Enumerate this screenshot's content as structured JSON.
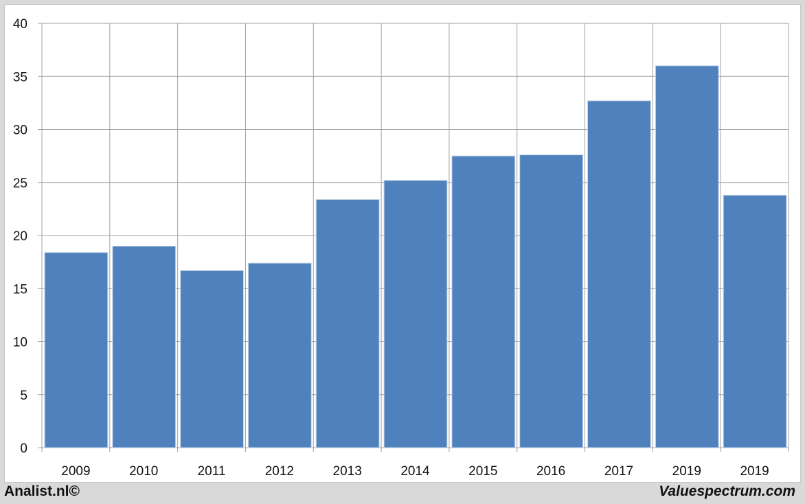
{
  "chart_data": {
    "type": "bar",
    "categories": [
      "2009",
      "2010",
      "2011",
      "2012",
      "2013",
      "2014",
      "2015",
      "2016",
      "2017",
      "2019",
      "2019"
    ],
    "values": [
      18.4,
      19.0,
      16.7,
      17.4,
      23.4,
      25.2,
      27.5,
      27.6,
      32.7,
      36.0,
      23.8
    ],
    "title": "",
    "xlabel": "",
    "ylabel": "",
    "ylim": [
      0,
      40
    ],
    "yticks": [
      0,
      5,
      10,
      15,
      20,
      25,
      30,
      35,
      40
    ],
    "grid": true,
    "bar_color": "#4f81bd",
    "grid_color": "#a0a0a0"
  },
  "footer": {
    "left": "Analist.nl©",
    "right": "Valuespectrum.com"
  }
}
